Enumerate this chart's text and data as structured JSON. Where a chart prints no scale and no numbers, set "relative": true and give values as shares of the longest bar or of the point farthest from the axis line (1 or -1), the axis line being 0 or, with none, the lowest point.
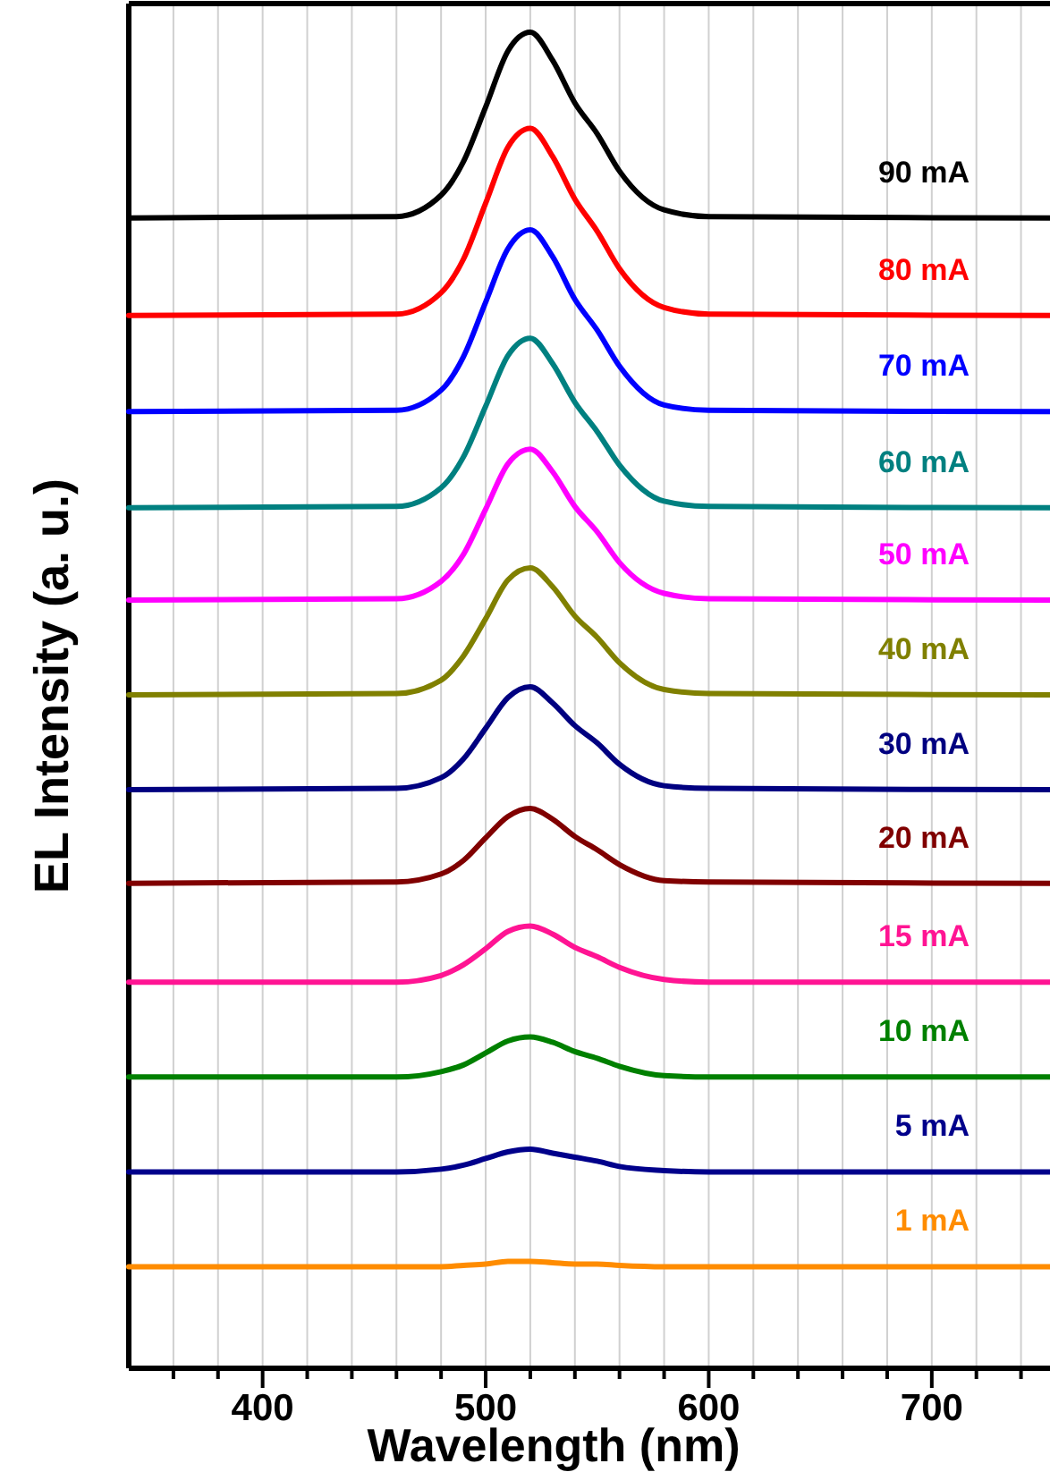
{
  "chart_data": {
    "type": "line",
    "relative": true,
    "xlabel": "Wavelength (nm)",
    "ylabel": "EL Intensity (a. u.)",
    "xlim": [
      340,
      753
    ],
    "xticks": [
      {
        "value": 360,
        "label": null
      },
      {
        "value": 380,
        "label": null
      },
      400,
      {
        "value": 420,
        "label": null
      },
      {
        "value": 440,
        "label": null
      },
      {
        "value": 460,
        "label": null
      },
      {
        "value": 480,
        "label": null
      },
      500,
      {
        "value": 520,
        "label": null
      },
      {
        "value": 540,
        "label": null
      },
      {
        "value": 560,
        "label": null
      },
      {
        "value": 580,
        "label": null
      },
      600,
      {
        "value": 620,
        "label": null
      },
      {
        "value": 640,
        "label": null
      },
      {
        "value": 660,
        "label": null
      },
      {
        "value": 680,
        "label": null
      },
      700,
      {
        "value": 720,
        "label": null
      },
      {
        "value": 740,
        "label": null
      }
    ],
    "grid": "x",
    "legend": false,
    "tick_labels": "x",
    "marker": "none",
    "line_style": "solid",
    "x": [
      340,
      460,
      480,
      490,
      500,
      510,
      520,
      530,
      540,
      550,
      560,
      580,
      600,
      753
    ],
    "series": [
      {
        "name": "90 mA",
        "color": "#000000",
        "values": [
          0.861,
          0.862,
          0.878,
          0.903,
          0.944,
          0.986,
          1.0,
          0.979,
          0.947,
          0.924,
          0.896,
          0.867,
          0.862,
          0.861
        ]
      },
      {
        "name": "80 mA",
        "color": "#ff0000",
        "values": [
          0.788,
          0.789,
          0.805,
          0.83,
          0.872,
          0.914,
          0.928,
          0.907,
          0.875,
          0.851,
          0.823,
          0.794,
          0.789,
          0.788
        ]
      },
      {
        "name": "70 mA",
        "color": "#0000ff",
        "values": [
          0.716,
          0.717,
          0.732,
          0.757,
          0.798,
          0.838,
          0.852,
          0.832,
          0.8,
          0.777,
          0.75,
          0.721,
          0.717,
          0.716
        ]
      },
      {
        "name": "60 mA",
        "color": "#008080",
        "values": [
          0.644,
          0.645,
          0.659,
          0.682,
          0.72,
          0.758,
          0.771,
          0.752,
          0.723,
          0.701,
          0.676,
          0.649,
          0.645,
          0.644
        ]
      },
      {
        "name": "50 mA",
        "color": "#ff00ff",
        "values": [
          0.575,
          0.576,
          0.589,
          0.609,
          0.643,
          0.677,
          0.688,
          0.671,
          0.645,
          0.626,
          0.603,
          0.58,
          0.576,
          0.575
        ]
      },
      {
        "name": "40 mA",
        "color": "#808000",
        "values": [
          0.504,
          0.505,
          0.515,
          0.533,
          0.561,
          0.59,
          0.599,
          0.585,
          0.563,
          0.547,
          0.528,
          0.508,
          0.505,
          0.504
        ]
      },
      {
        "name": "30 mA",
        "color": "#000080",
        "values": [
          0.433,
          0.434,
          0.442,
          0.456,
          0.479,
          0.502,
          0.51,
          0.498,
          0.481,
          0.468,
          0.452,
          0.436,
          0.434,
          0.433
        ]
      },
      {
        "name": "20 mA",
        "color": "#800000",
        "values": [
          0.363,
          0.364,
          0.37,
          0.38,
          0.397,
          0.413,
          0.419,
          0.411,
          0.398,
          0.388,
          0.377,
          0.365,
          0.364,
          0.363
        ]
      },
      {
        "name": "15 mA",
        "color": "#ff1493",
        "values": [
          0.289,
          0.289,
          0.294,
          0.302,
          0.314,
          0.327,
          0.331,
          0.325,
          0.315,
          0.308,
          0.3,
          0.291,
          0.289,
          0.289
        ]
      },
      {
        "name": "10 mA",
        "color": "#008000",
        "values": [
          0.218,
          0.218,
          0.222,
          0.227,
          0.236,
          0.245,
          0.248,
          0.244,
          0.237,
          0.232,
          0.226,
          0.219,
          0.218,
          0.218
        ]
      },
      {
        "name": "5 mA",
        "color": "#00008b",
        "values": [
          0.147,
          0.147,
          0.149,
          0.152,
          0.157,
          0.162,
          0.164,
          0.161,
          0.158,
          0.155,
          0.151,
          0.148,
          0.147,
          0.147
        ]
      },
      {
        "name": "1 mA",
        "color": "#ff8c00",
        "values": [
          0.076,
          0.076,
          0.076,
          0.077,
          0.078,
          0.08,
          0.08,
          0.079,
          0.078,
          0.078,
          0.077,
          0.076,
          0.076,
          0.076
        ]
      }
    ]
  }
}
